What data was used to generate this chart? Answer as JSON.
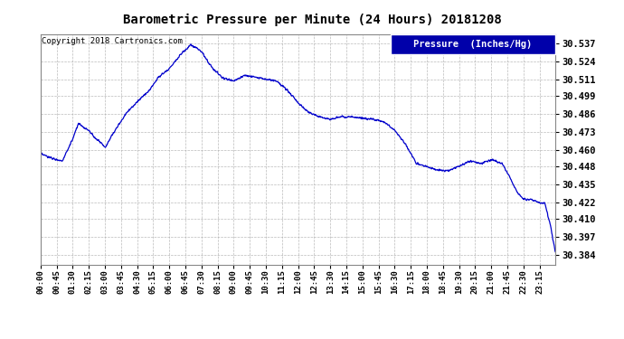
{
  "title": "Barometric Pressure per Minute (24 Hours) 20181208",
  "copyright": "Copyright 2018 Cartronics.com",
  "legend_label": "Pressure  (Inches/Hg)",
  "line_color": "#0000CC",
  "background_color": "#ffffff",
  "grid_color": "#aaaaaa",
  "legend_bg": "#0000AA",
  "ylim": [
    30.377,
    30.544
  ],
  "yticks": [
    30.384,
    30.397,
    30.41,
    30.422,
    30.435,
    30.448,
    30.46,
    30.473,
    30.486,
    30.499,
    30.511,
    30.524,
    30.537
  ],
  "xtick_labels": [
    "00:00",
    "00:45",
    "01:30",
    "02:15",
    "03:00",
    "03:45",
    "04:30",
    "05:15",
    "06:00",
    "06:45",
    "07:30",
    "08:15",
    "09:00",
    "09:45",
    "10:30",
    "11:15",
    "12:00",
    "12:45",
    "13:30",
    "14:15",
    "15:00",
    "15:45",
    "16:30",
    "17:15",
    "18:00",
    "18:45",
    "19:30",
    "20:15",
    "21:00",
    "21:45",
    "22:30",
    "23:15"
  ],
  "key_times": [
    0,
    30,
    60,
    90,
    105,
    120,
    135,
    150,
    165,
    180,
    210,
    240,
    270,
    300,
    330,
    360,
    390,
    420,
    435,
    450,
    465,
    480,
    510,
    540,
    570,
    600,
    630,
    660,
    690,
    720,
    750,
    780,
    810,
    840,
    870,
    900,
    930,
    960,
    990,
    1020,
    1050,
    1080,
    1110,
    1140,
    1170,
    1200,
    1230,
    1260,
    1290,
    1310,
    1330,
    1350,
    1370,
    1390,
    1410,
    1425,
    1439
  ],
  "key_pressures": [
    30.457,
    30.454,
    30.452,
    30.468,
    30.479,
    30.476,
    30.474,
    30.469,
    30.466,
    30.462,
    30.475,
    30.487,
    30.495,
    30.502,
    30.513,
    30.519,
    30.529,
    30.536,
    30.534,
    30.531,
    30.525,
    30.519,
    30.512,
    30.51,
    30.514,
    30.513,
    30.511,
    30.51,
    30.503,
    30.494,
    30.487,
    30.484,
    30.482,
    30.484,
    30.484,
    30.483,
    30.482,
    30.48,
    30.474,
    30.464,
    30.45,
    30.448,
    30.445,
    30.445,
    30.448,
    30.452,
    30.45,
    30.453,
    30.45,
    30.441,
    30.43,
    30.424,
    30.424,
    30.422,
    30.421,
    30.405,
    30.385
  ]
}
